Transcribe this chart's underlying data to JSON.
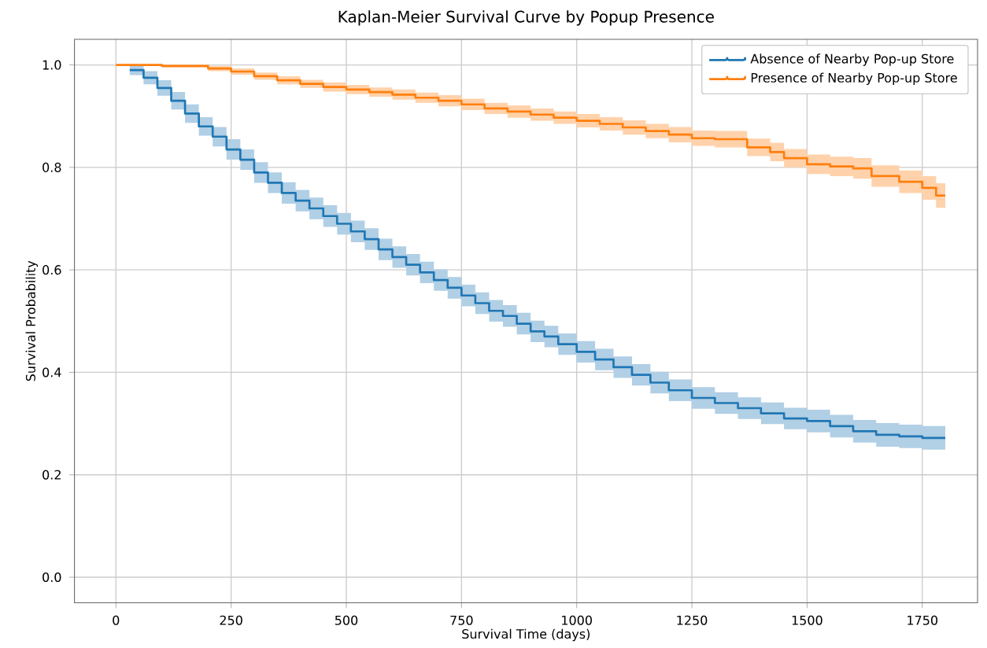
{
  "chart_data": {
    "type": "step",
    "title": "Kaplan-Meier Survival Curve by Popup Presence",
    "xlabel": "Survival Time (days)",
    "ylabel": "Survival Probability",
    "xlim": [
      -90,
      1870
    ],
    "ylim": [
      -0.05,
      1.05
    ],
    "xticks": [
      0,
      250,
      500,
      750,
      1000,
      1250,
      1500,
      1750
    ],
    "yticks": [
      {
        "value": 0,
        "label": "0.0"
      },
      0.2,
      0.4,
      0.6,
      0.8,
      {
        "value": 1,
        "label": "1.0"
      }
    ],
    "grid": true,
    "legend": "top right",
    "series": [
      {
        "name": "Absence of Nearby Pop-up Store",
        "color": "#1f77b4",
        "x": [
          30,
          60,
          90,
          120,
          150,
          180,
          210,
          240,
          270,
          300,
          330,
          360,
          390,
          420,
          450,
          480,
          510,
          540,
          570,
          600,
          630,
          660,
          690,
          720,
          750,
          780,
          810,
          840,
          870,
          900,
          930,
          960,
          1000,
          1040,
          1080,
          1120,
          1160,
          1200,
          1250,
          1300,
          1350,
          1400,
          1450,
          1500,
          1550,
          1600,
          1650,
          1700,
          1750,
          1800
        ],
        "values": [
          0.99,
          0.975,
          0.955,
          0.93,
          0.905,
          0.88,
          0.86,
          0.835,
          0.815,
          0.79,
          0.77,
          0.75,
          0.735,
          0.72,
          0.705,
          0.69,
          0.675,
          0.66,
          0.64,
          0.625,
          0.61,
          0.595,
          0.58,
          0.565,
          0.55,
          0.535,
          0.52,
          0.51,
          0.495,
          0.48,
          0.47,
          0.455,
          0.44,
          0.425,
          0.41,
          0.395,
          0.38,
          0.365,
          0.35,
          0.34,
          0.33,
          0.32,
          0.31,
          0.305,
          0.295,
          0.285,
          0.278,
          0.275,
          0.272,
          0.272
        ],
        "lower": [
          0.98,
          0.962,
          0.94,
          0.913,
          0.887,
          0.862,
          0.841,
          0.815,
          0.795,
          0.77,
          0.75,
          0.729,
          0.714,
          0.699,
          0.684,
          0.669,
          0.654,
          0.639,
          0.619,
          0.604,
          0.589,
          0.574,
          0.559,
          0.544,
          0.529,
          0.514,
          0.499,
          0.489,
          0.474,
          0.459,
          0.449,
          0.434,
          0.419,
          0.404,
          0.389,
          0.374,
          0.359,
          0.344,
          0.329,
          0.319,
          0.309,
          0.299,
          0.289,
          0.283,
          0.273,
          0.263,
          0.255,
          0.252,
          0.249,
          0.249
        ],
        "upper": [
          1.0,
          0.988,
          0.97,
          0.947,
          0.923,
          0.898,
          0.879,
          0.855,
          0.835,
          0.81,
          0.79,
          0.771,
          0.756,
          0.741,
          0.726,
          0.711,
          0.696,
          0.681,
          0.661,
          0.646,
          0.631,
          0.616,
          0.601,
          0.586,
          0.571,
          0.556,
          0.541,
          0.531,
          0.516,
          0.501,
          0.491,
          0.476,
          0.461,
          0.446,
          0.431,
          0.416,
          0.401,
          0.386,
          0.371,
          0.361,
          0.351,
          0.341,
          0.331,
          0.327,
          0.317,
          0.307,
          0.301,
          0.298,
          0.295,
          0.295
        ]
      },
      {
        "name": "Presence of Nearby Pop-up Store",
        "color": "#ff7f0e",
        "x": [
          0,
          100,
          200,
          250,
          300,
          350,
          400,
          450,
          500,
          550,
          600,
          650,
          700,
          750,
          800,
          850,
          900,
          950,
          1000,
          1050,
          1100,
          1150,
          1200,
          1250,
          1300,
          1370,
          1420,
          1450,
          1500,
          1550,
          1600,
          1640,
          1700,
          1750,
          1780,
          1800
        ],
        "values": [
          1.0,
          0.998,
          0.993,
          0.987,
          0.978,
          0.97,
          0.963,
          0.957,
          0.952,
          0.947,
          0.942,
          0.936,
          0.93,
          0.923,
          0.915,
          0.909,
          0.903,
          0.897,
          0.891,
          0.885,
          0.878,
          0.871,
          0.864,
          0.857,
          0.855,
          0.839,
          0.83,
          0.818,
          0.806,
          0.802,
          0.798,
          0.783,
          0.772,
          0.76,
          0.745,
          0.745
        ],
        "lower": [
          1.0,
          0.995,
          0.988,
          0.981,
          0.971,
          0.962,
          0.955,
          0.948,
          0.943,
          0.938,
          0.932,
          0.926,
          0.919,
          0.912,
          0.904,
          0.897,
          0.891,
          0.885,
          0.878,
          0.872,
          0.864,
          0.857,
          0.849,
          0.842,
          0.839,
          0.822,
          0.812,
          0.8,
          0.787,
          0.783,
          0.778,
          0.762,
          0.75,
          0.737,
          0.721,
          0.721
        ],
        "upper": [
          1.0,
          1.0,
          0.998,
          0.993,
          0.985,
          0.978,
          0.971,
          0.966,
          0.961,
          0.956,
          0.952,
          0.946,
          0.941,
          0.934,
          0.926,
          0.921,
          0.915,
          0.909,
          0.904,
          0.898,
          0.892,
          0.885,
          0.879,
          0.872,
          0.871,
          0.856,
          0.848,
          0.836,
          0.825,
          0.821,
          0.818,
          0.804,
          0.794,
          0.783,
          0.769,
          0.769
        ]
      }
    ]
  }
}
